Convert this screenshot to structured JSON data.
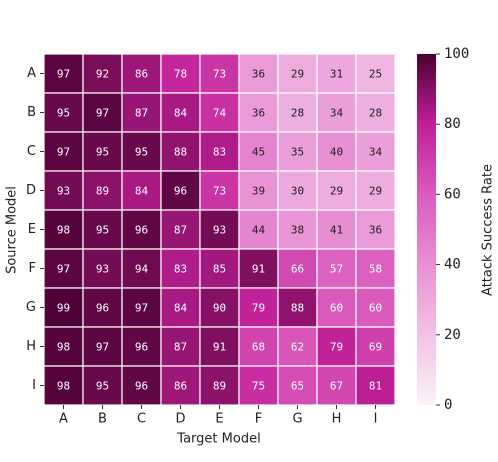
{
  "chart_data": {
    "type": "heatmap",
    "x_label": "Target Model",
    "y_label": "Source Model",
    "colorbar_label": "Attack Success Rate",
    "x_categories": [
      "A",
      "B",
      "C",
      "D",
      "E",
      "F",
      "G",
      "H",
      "I"
    ],
    "y_categories": [
      "A",
      "B",
      "C",
      "D",
      "E",
      "F",
      "G",
      "H",
      "I"
    ],
    "values": [
      [
        97,
        92,
        86,
        78,
        73,
        36,
        29,
        31,
        25
      ],
      [
        95,
        97,
        87,
        84,
        74,
        36,
        28,
        34,
        28
      ],
      [
        97,
        95,
        95,
        88,
        83,
        45,
        35,
        40,
        34
      ],
      [
        93,
        89,
        84,
        96,
        73,
        39,
        30,
        29,
        29
      ],
      [
        98,
        95,
        96,
        87,
        93,
        44,
        38,
        41,
        36
      ],
      [
        97,
        93,
        94,
        83,
        85,
        91,
        66,
        57,
        58
      ],
      [
        99,
        96,
        97,
        84,
        90,
        79,
        88,
        60,
        60
      ],
      [
        98,
        97,
        96,
        87,
        91,
        68,
        62,
        79,
        69
      ],
      [
        98,
        95,
        96,
        86,
        89,
        75,
        65,
        67,
        81
      ]
    ],
    "clim": [
      0,
      100
    ],
    "cticks": [
      0,
      20,
      40,
      60,
      80,
      100
    ],
    "colormap": [
      "#fdf2fa",
      "#f2c2e6",
      "#e890d3",
      "#db5bbd",
      "#c11f97",
      "#4a0132"
    ]
  }
}
